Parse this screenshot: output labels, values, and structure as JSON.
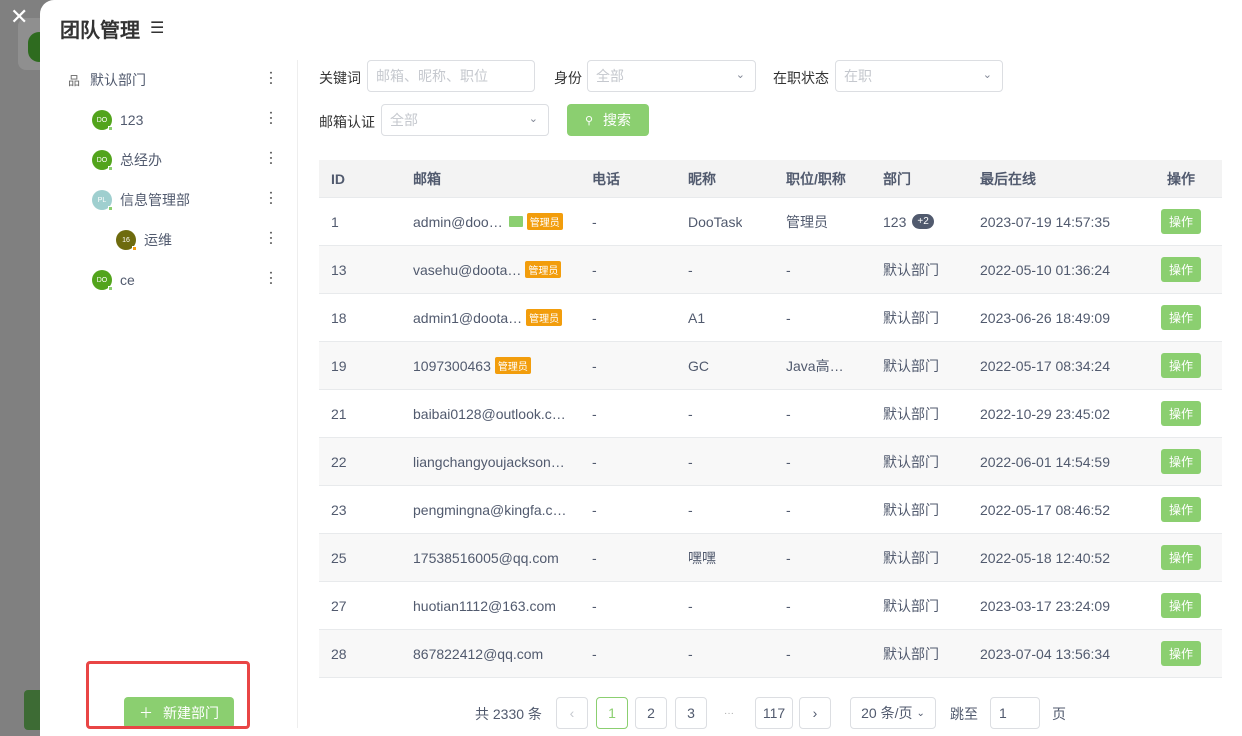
{
  "title": "团队管理",
  "tree": [
    {
      "label": "默认部门",
      "type": "root"
    },
    {
      "label": "123",
      "avatar": "DO",
      "color": "#52a41c",
      "level": 1
    },
    {
      "label": "总经办",
      "avatar": "DO",
      "color": "#52a41c",
      "level": 1
    },
    {
      "label": "信息管理部",
      "avatar": "PL",
      "color": "#9fcfcf",
      "level": 1
    },
    {
      "label": "运维",
      "avatar": "16",
      "color": "#6e6b0e",
      "level": 2
    },
    {
      "label": "ce",
      "avatar": "DO",
      "color": "#52a41c",
      "level": 1
    }
  ],
  "new_dept": "新建部门",
  "filters": {
    "keyword_label": "关键词",
    "keyword_placeholder": "邮箱、昵称、职位",
    "identity_label": "身份",
    "identity_value": "全部",
    "status_label": "在职状态",
    "status_value": "在职",
    "email_label": "邮箱认证",
    "email_value": "全部",
    "search": "搜索"
  },
  "columns": [
    "ID",
    "邮箱",
    "电话",
    "昵称",
    "职位/职称",
    "部门",
    "最后在线",
    "操作"
  ],
  "admin_tag": "管理员",
  "rows": [
    {
      "id": "1",
      "email": "admin@doo…",
      "verified": true,
      "admin": true,
      "phone": "-",
      "nick": "DooTask",
      "pos": "管理员",
      "dept": "123",
      "extra": "+2",
      "last": "2023-07-19 14:57:35",
      "op": "操作"
    },
    {
      "id": "13",
      "email": "vasehu@doota…",
      "admin": true,
      "phone": "-",
      "nick": "-",
      "pos": "-",
      "dept": "默认部门",
      "last": "2022-05-10 01:36:24",
      "op": "操作"
    },
    {
      "id": "18",
      "email": "admin1@doota…",
      "admin": true,
      "phone": "-",
      "nick": "A1",
      "pos": "-",
      "dept": "默认部门",
      "last": "2023-06-26 18:49:09",
      "op": "操作"
    },
    {
      "id": "19",
      "email": "1097300463",
      "admin": true,
      "phone": "-",
      "nick": "GC",
      "pos": "Java高…",
      "dept": "默认部门",
      "last": "2022-05-17 08:34:24",
      "op": "操作"
    },
    {
      "id": "21",
      "email": "baibai0128@outlook.c…",
      "phone": "-",
      "nick": "-",
      "pos": "-",
      "dept": "默认部门",
      "last": "2022-10-29 23:45:02",
      "op": "操作"
    },
    {
      "id": "22",
      "email": "liangchangyoujackson…",
      "phone": "-",
      "nick": "-",
      "pos": "-",
      "dept": "默认部门",
      "last": "2022-06-01 14:54:59",
      "op": "操作"
    },
    {
      "id": "23",
      "email": "pengmingna@kingfa.c…",
      "phone": "-",
      "nick": "-",
      "pos": "-",
      "dept": "默认部门",
      "last": "2022-05-17 08:46:52",
      "op": "操作"
    },
    {
      "id": "25",
      "email": "17538516005@qq.com",
      "phone": "-",
      "nick": "嘿嘿",
      "pos": "-",
      "dept": "默认部门",
      "last": "2022-05-18 12:40:52",
      "op": "操作"
    },
    {
      "id": "27",
      "email": "huotian1112@163.com",
      "phone": "-",
      "nick": "-",
      "pos": "-",
      "dept": "默认部门",
      "last": "2023-03-17 23:24:09",
      "op": "操作"
    },
    {
      "id": "28",
      "email": "867822412@qq.com",
      "phone": "-",
      "nick": "-",
      "pos": "-",
      "dept": "默认部门",
      "last": "2023-07-04 13:56:34",
      "op": "操作"
    }
  ],
  "pagination": {
    "total": "共 2330 条",
    "pages": [
      "1",
      "2",
      "3"
    ],
    "ellipsis": "···",
    "last": "117",
    "current": "1",
    "size": "20 条/页",
    "jump_label": "跳至",
    "jump_value": "1",
    "page_suffix": "页"
  }
}
